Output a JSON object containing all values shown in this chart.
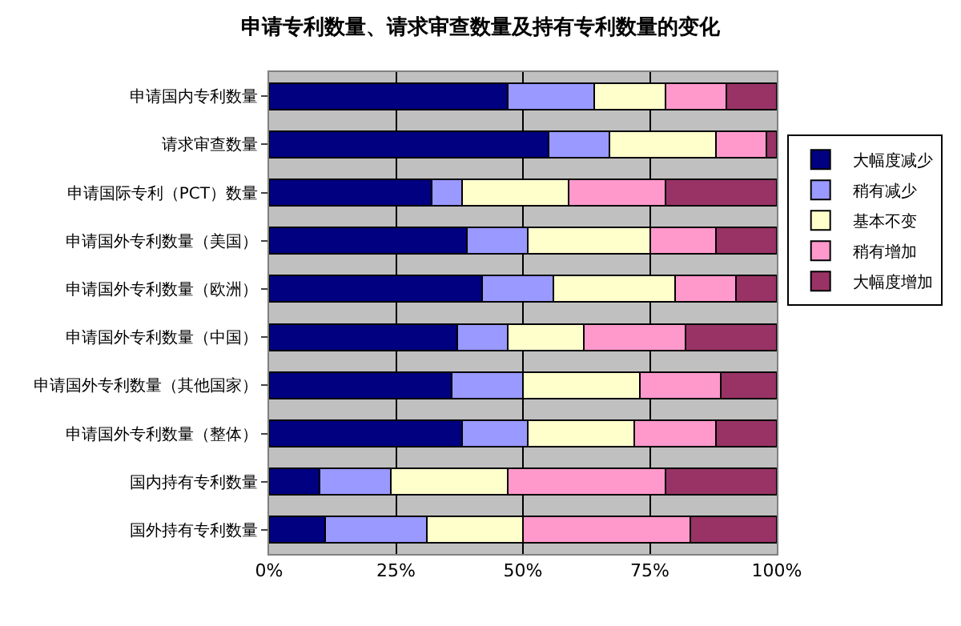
{
  "chart_data": {
    "type": "bar",
    "orientation": "horizontal",
    "stacked": true,
    "title": "申请专利数量、请求审查数量及持有专利数量的变化",
    "categories": [
      "申请国内专利数量",
      "请求审查数量",
      "申请国际专利（PCT）数量",
      "申请国外专利数量（美国）",
      "申请国外专利数量（欧洲）",
      "申请国外专利数量（中国）",
      "申请国外专利数量（其他国家）",
      "申请国外专利数量（整体）",
      "国内持有专利数量",
      "国外持有专利数量"
    ],
    "series": [
      {
        "name": "大幅度减少",
        "color": "#000080",
        "values": [
          47,
          55,
          32,
          39,
          42,
          37,
          36,
          38,
          10,
          11
        ]
      },
      {
        "name": "稍有减少",
        "color": "#9999ff",
        "values": [
          17,
          12,
          6,
          12,
          14,
          10,
          14,
          13,
          14,
          20
        ]
      },
      {
        "name": "基本不变",
        "color": "#ffffcc",
        "values": [
          14,
          21,
          21,
          24,
          24,
          15,
          23,
          21,
          23,
          19
        ]
      },
      {
        "name": "稍有增加",
        "color": "#ff99cc",
        "values": [
          12,
          10,
          19,
          13,
          12,
          20,
          16,
          16,
          31,
          33
        ]
      },
      {
        "name": "大幅度增加",
        "color": "#993366",
        "values": [
          10,
          2,
          22,
          12,
          8,
          18,
          11,
          12,
          22,
          17
        ]
      }
    ],
    "xlim": [
      0,
      100
    ],
    "xticks": [
      {
        "value": 0,
        "label": "0%"
      },
      {
        "value": 25,
        "label": "25%"
      },
      {
        "value": 50,
        "label": "50%"
      },
      {
        "value": 75,
        "label": "75%"
      },
      {
        "value": 100,
        "label": "100%"
      }
    ],
    "grid": "x",
    "legend": "right"
  }
}
